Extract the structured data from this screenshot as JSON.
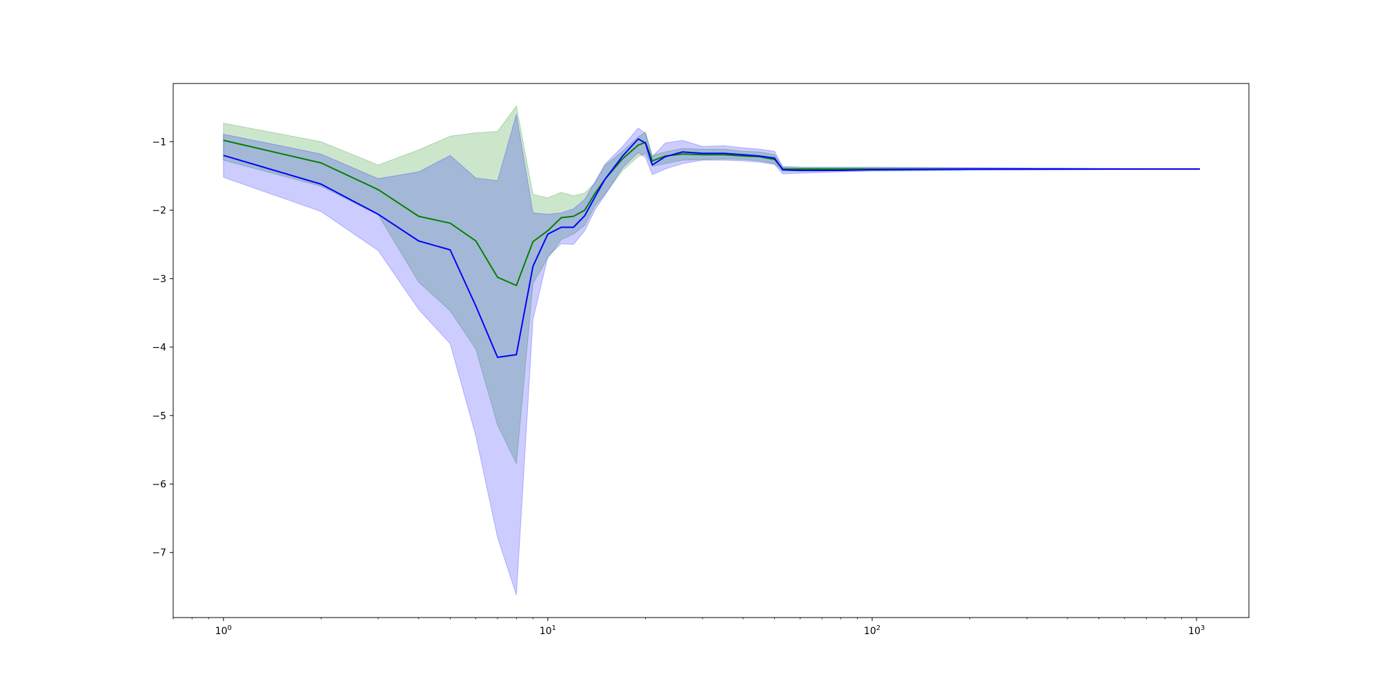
{
  "chart_data": {
    "type": "line",
    "title": "",
    "xlabel": "",
    "ylabel": "",
    "xscale": "log",
    "xlim": [
      0.7,
      1450
    ],
    "ylim": [
      -7.95,
      -0.15
    ],
    "grid": false,
    "legend": "none",
    "x_ticks": [
      {
        "value": 1,
        "base": "10",
        "exp": "0"
      },
      {
        "value": 10,
        "base": "10",
        "exp": "1"
      },
      {
        "value": 100,
        "base": "10",
        "exp": "2"
      },
      {
        "value": 1000,
        "base": "10",
        "exp": "3"
      }
    ],
    "y_ticks": [
      {
        "value": -1,
        "label": "−1"
      },
      {
        "value": -2,
        "label": "−2"
      },
      {
        "value": -3,
        "label": "−3"
      },
      {
        "value": -4,
        "label": "−4"
      },
      {
        "value": -5,
        "label": "−5"
      },
      {
        "value": -6,
        "label": "−6"
      },
      {
        "value": -7,
        "label": "−7"
      }
    ],
    "series": [
      {
        "color": "#008000",
        "fill": "#008000",
        "fill_opacity": 0.2,
        "x": [
          1,
          2,
          3,
          4,
          5,
          6,
          7,
          8,
          9,
          10,
          11,
          12,
          13,
          14,
          15,
          17,
          19,
          20,
          21,
          23,
          26,
          30,
          35,
          40,
          45,
          50,
          53,
          60,
          70,
          80,
          100,
          200,
          500,
          1024
        ],
        "y": [
          -0.98,
          -1.31,
          -1.7,
          -2.09,
          -2.19,
          -2.45,
          -2.98,
          -3.1,
          -2.46,
          -2.3,
          -2.11,
          -2.09,
          -2.0,
          -1.75,
          -1.55,
          -1.25,
          -1.05,
          -1.01,
          -1.28,
          -1.21,
          -1.18,
          -1.19,
          -1.19,
          -1.21,
          -1.22,
          -1.26,
          -1.4,
          -1.4,
          -1.4,
          -1.4,
          -1.4,
          -1.4,
          -1.4,
          -1.4
        ],
        "upper": [
          -0.73,
          -1.0,
          -1.34,
          -1.12,
          -0.92,
          -0.87,
          -0.85,
          -0.48,
          -1.77,
          -1.82,
          -1.74,
          -1.79,
          -1.75,
          -1.6,
          -1.35,
          -1.14,
          -0.93,
          -0.86,
          -1.2,
          -1.15,
          -1.1,
          -1.11,
          -1.11,
          -1.14,
          -1.15,
          -1.19,
          -1.36,
          -1.37,
          -1.37,
          -1.37,
          -1.37,
          -1.38,
          -1.39,
          -1.39
        ],
        "lower": [
          -1.27,
          -1.65,
          -2.07,
          -3.05,
          -3.47,
          -4.03,
          -5.14,
          -5.7,
          -3.07,
          -2.7,
          -2.43,
          -2.35,
          -2.22,
          -1.93,
          -1.77,
          -1.42,
          -1.22,
          -1.17,
          -1.36,
          -1.32,
          -1.27,
          -1.26,
          -1.25,
          -1.26,
          -1.28,
          -1.32,
          -1.43,
          -1.43,
          -1.43,
          -1.42,
          -1.42,
          -1.41,
          -1.4,
          -1.4
        ]
      },
      {
        "color": "#0000ff",
        "fill": "#0000ff",
        "fill_opacity": 0.2,
        "x": [
          1,
          2,
          3,
          4,
          5,
          6,
          7,
          8,
          9,
          10,
          11,
          12,
          13,
          14,
          15,
          17,
          19,
          20,
          21,
          23,
          26,
          30,
          35,
          40,
          45,
          50,
          53,
          60,
          70,
          80,
          100,
          200,
          500,
          1024
        ],
        "y": [
          -1.2,
          -1.62,
          -2.06,
          -2.45,
          -2.58,
          -3.4,
          -4.15,
          -4.11,
          -2.82,
          -2.35,
          -2.25,
          -2.25,
          -2.08,
          -1.8,
          -1.55,
          -1.21,
          -0.96,
          -1.02,
          -1.34,
          -1.22,
          -1.15,
          -1.17,
          -1.17,
          -1.19,
          -1.21,
          -1.24,
          -1.41,
          -1.42,
          -1.42,
          -1.42,
          -1.41,
          -1.4,
          -1.4,
          -1.4
        ],
        "upper": [
          -0.89,
          -1.18,
          -1.54,
          -1.44,
          -1.2,
          -1.53,
          -1.57,
          -0.6,
          -2.04,
          -2.06,
          -2.04,
          -1.98,
          -1.84,
          -1.58,
          -1.33,
          -1.07,
          -0.8,
          -0.88,
          -1.22,
          -1.02,
          -0.98,
          -1.07,
          -1.06,
          -1.09,
          -1.11,
          -1.14,
          -1.37,
          -1.38,
          -1.38,
          -1.38,
          -1.38,
          -1.38,
          -1.39,
          -1.4
        ],
        "lower": [
          -1.52,
          -2.02,
          -2.59,
          -3.45,
          -3.95,
          -5.3,
          -6.78,
          -7.62,
          -3.6,
          -2.68,
          -2.49,
          -2.5,
          -2.3,
          -1.99,
          -1.78,
          -1.38,
          -1.16,
          -1.23,
          -1.48,
          -1.4,
          -1.32,
          -1.27,
          -1.27,
          -1.28,
          -1.3,
          -1.33,
          -1.47,
          -1.46,
          -1.45,
          -1.44,
          -1.43,
          -1.42,
          -1.41,
          -1.4
        ]
      }
    ]
  }
}
